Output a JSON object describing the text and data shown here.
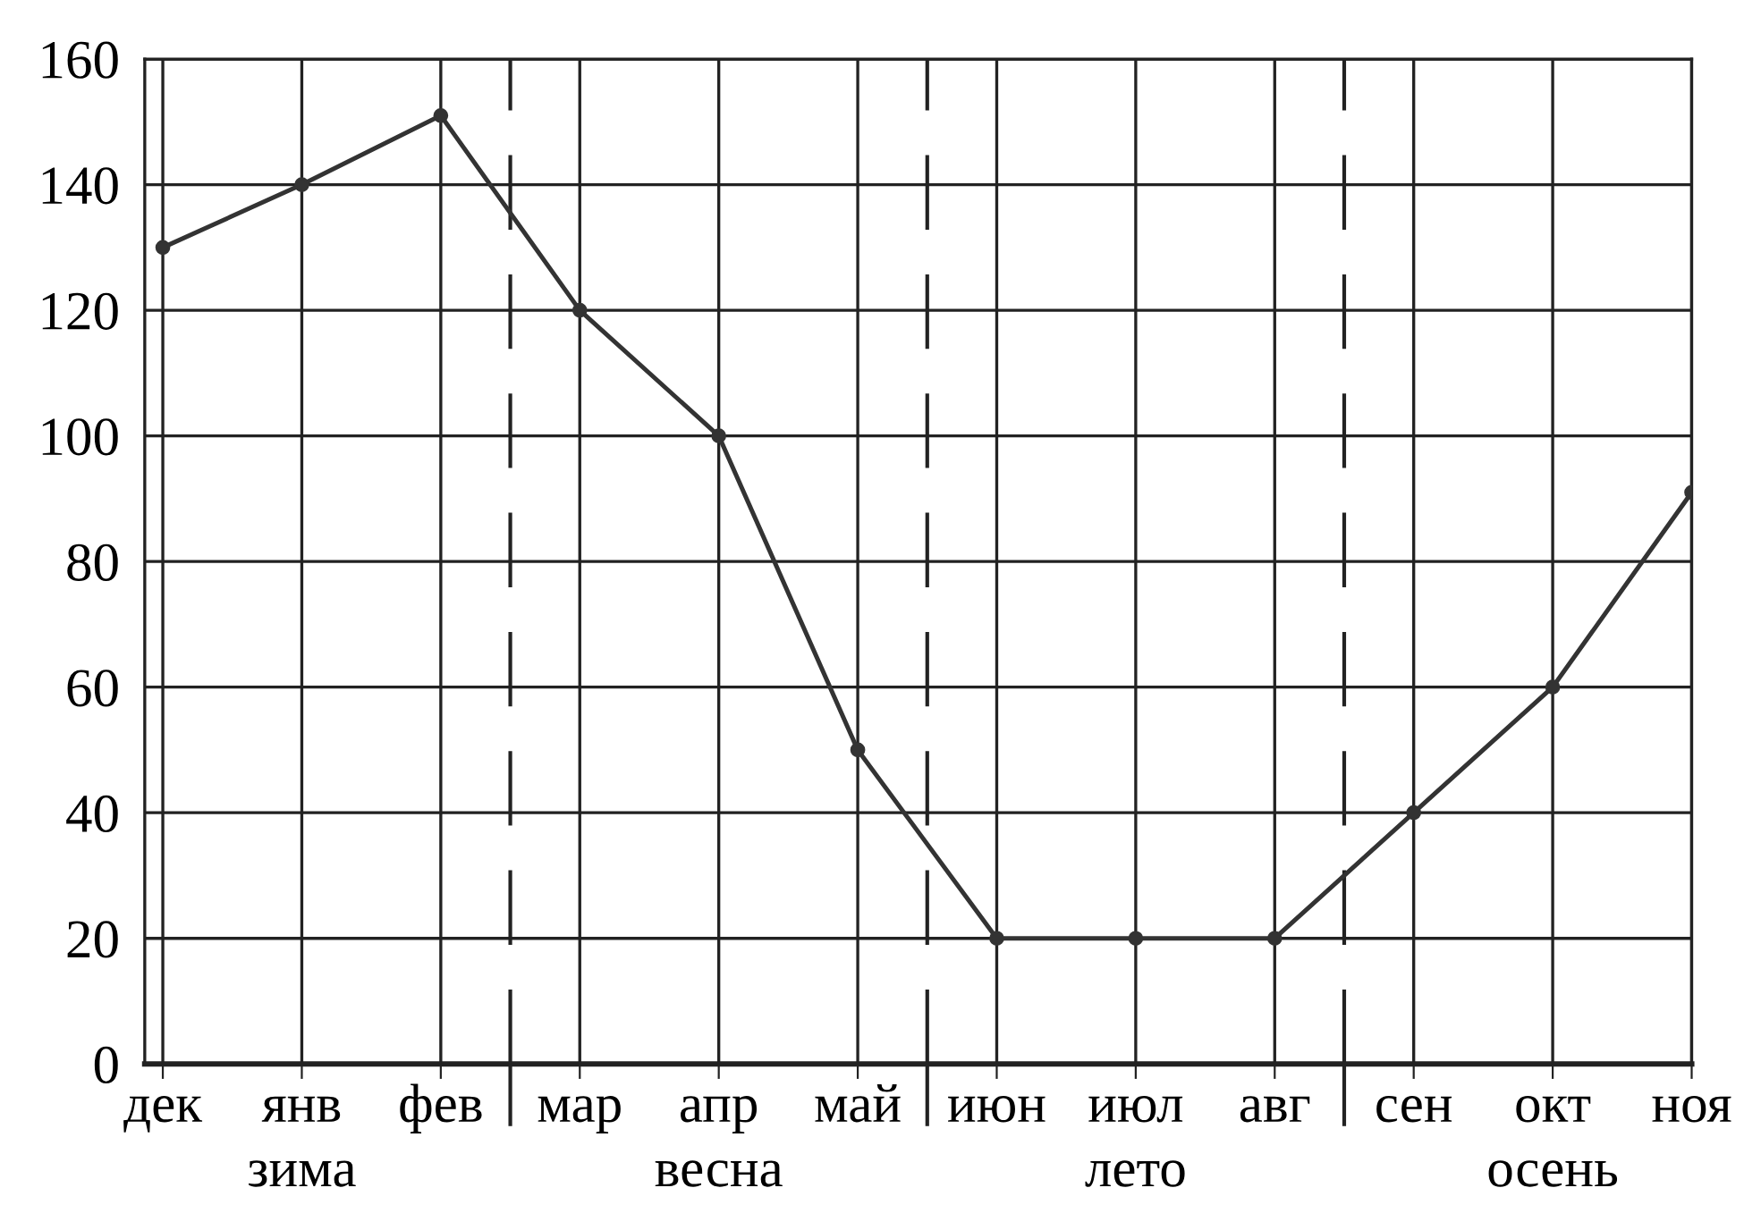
{
  "chart_data": {
    "type": "line",
    "categories": [
      "дек",
      "янв",
      "фев",
      "мар",
      "апр",
      "май",
      "июн",
      "июл",
      "авг",
      "сен",
      "окт",
      "ноя"
    ],
    "series": [
      {
        "color": "#333333",
        "values": [
          130,
          140,
          151,
          120,
          100,
          50,
          20,
          20,
          20,
          40,
          60,
          91
        ]
      }
    ],
    "ylim": [
      0,
      160
    ],
    "yticks": [
      0,
      20,
      40,
      60,
      80,
      100,
      120,
      140,
      160
    ],
    "grid": true,
    "marker": "circle",
    "line_style": "solid",
    "annotations": [
      "зима",
      "весна",
      "лето",
      "осень"
    ]
  }
}
